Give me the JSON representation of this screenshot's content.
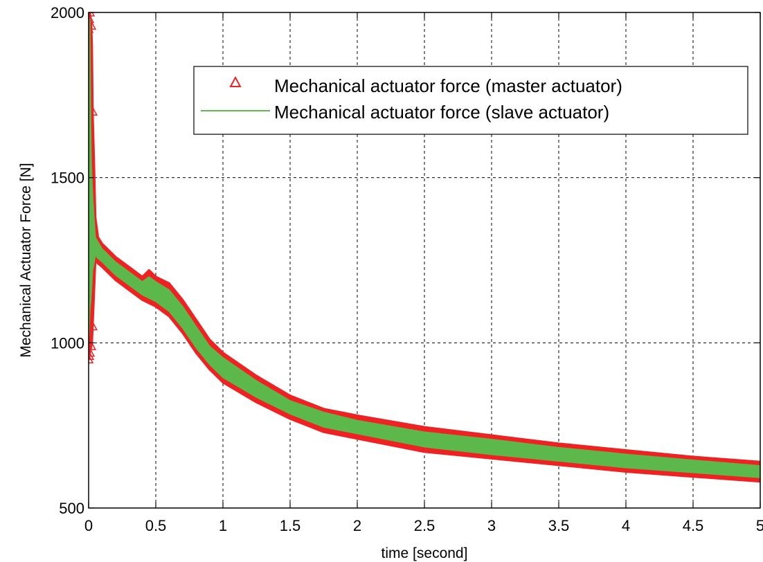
{
  "chart_data": {
    "type": "line",
    "title": "",
    "xlabel": "time [second]",
    "ylabel": "Mechanical Actuator Force [N]",
    "xlim": [
      0,
      5
    ],
    "ylim": [
      500,
      2000
    ],
    "x_ticks": [
      0,
      0.5,
      1,
      1.5,
      2,
      2.5,
      3,
      3.5,
      4,
      4.5,
      5
    ],
    "x_tick_labels": [
      "0",
      "0.5",
      "1",
      "1.5",
      "2",
      "2.5",
      "3",
      "3.5",
      "4",
      "4.5",
      "5"
    ],
    "y_ticks": [
      500,
      1000,
      1500,
      2000
    ],
    "y_tick_labels": [
      "500",
      "1000",
      "1500",
      "2000"
    ],
    "grid": true,
    "legend_position": "top-right",
    "series": [
      {
        "name": "Mechanical actuator force (master actuator)",
        "marker": "triangle",
        "color": "#ee2222",
        "x": [
          0,
          0.005,
          0.01,
          0.015,
          0.02,
          0.025,
          0.03,
          0.04,
          0.05,
          0.07,
          0.1,
          0.2,
          0.3,
          0.4,
          0.45,
          0.5,
          0.6,
          0.7,
          0.8,
          0.9,
          1.0,
          1.25,
          1.5,
          1.75,
          2.0,
          2.5,
          3.0,
          3.5,
          4.0,
          4.5,
          5.0
        ],
        "upper": [
          1950,
          1980,
          2000,
          1980,
          1960,
          1900,
          1700,
          1550,
          1380,
          1320,
          1300,
          1260,
          1230,
          1200,
          1220,
          1200,
          1180,
          1130,
          1070,
          1010,
          970,
          900,
          840,
          800,
          780,
          745,
          720,
          695,
          675,
          655,
          640
        ],
        "lower": [
          950,
          960,
          970,
          980,
          990,
          1000,
          1050,
          1150,
          1250,
          1240,
          1230,
          1190,
          1160,
          1130,
          1120,
          1110,
          1080,
          1030,
          970,
          920,
          880,
          820,
          770,
          730,
          710,
          670,
          650,
          630,
          610,
          595,
          580
        ]
      },
      {
        "name": "Mechanical actuator force (slave actuator)",
        "marker": "line",
        "color": "#5cb84a",
        "x": [
          0,
          0.005,
          0.01,
          0.015,
          0.02,
          0.025,
          0.03,
          0.04,
          0.05,
          0.07,
          0.1,
          0.2,
          0.3,
          0.4,
          0.45,
          0.5,
          0.6,
          0.7,
          0.8,
          0.9,
          1.0,
          1.25,
          1.5,
          1.75,
          2.0,
          2.5,
          3.0,
          3.5,
          4.0,
          4.5,
          5.0
        ],
        "upper": [
          1050,
          1500,
          1980,
          1700,
          1550,
          1500,
          1450,
          1380,
          1320,
          1305,
          1285,
          1245,
          1215,
          1185,
          1200,
          1185,
          1160,
          1110,
          1050,
          990,
          955,
          885,
          825,
          790,
          765,
          730,
          708,
          683,
          663,
          645,
          628
        ],
        "lower": [
          1000,
          1050,
          1100,
          1120,
          1150,
          1180,
          1220,
          1240,
          1265,
          1255,
          1245,
          1205,
          1175,
          1145,
          1135,
          1125,
          1095,
          1045,
          985,
          935,
          895,
          835,
          785,
          745,
          725,
          685,
          662,
          642,
          622,
          607,
          592
        ]
      }
    ]
  }
}
